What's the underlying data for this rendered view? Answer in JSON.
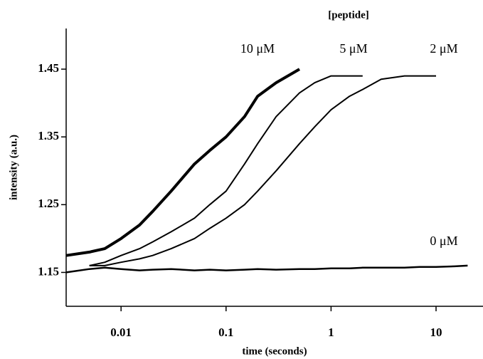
{
  "chart_data": {
    "type": "line",
    "legend_title": "[peptide]",
    "x_label": "time (seconds)",
    "y_label": "intensity (a.u.)",
    "x_scale": "log",
    "xlim": [
      0.003,
      28
    ],
    "ylim": [
      1.1,
      1.51
    ],
    "xticks": [
      0.01,
      0.1,
      1,
      10
    ],
    "yticks": [
      1.15,
      1.25,
      1.35,
      1.45
    ],
    "x": [
      0.003,
      0.005,
      0.007,
      0.01,
      0.015,
      0.02,
      0.03,
      0.05,
      0.07,
      0.1,
      0.15,
      0.2,
      0.3,
      0.5,
      0.7,
      1,
      1.5,
      2,
      3,
      5,
      7,
      10,
      15,
      20
    ],
    "series": [
      {
        "name": "10 μM",
        "color": "#000000",
        "values": [
          1.175,
          1.18,
          1.185,
          1.2,
          1.22,
          1.24,
          1.27,
          1.31,
          1.33,
          1.35,
          1.38,
          1.41,
          1.43,
          1.45,
          null,
          null,
          null,
          null,
          null,
          null,
          null,
          null,
          null,
          null
        ]
      },
      {
        "name": "5 μM",
        "color": "#000000",
        "values": [
          null,
          1.16,
          1.165,
          1.175,
          1.185,
          1.195,
          1.21,
          1.23,
          1.25,
          1.27,
          1.31,
          1.34,
          1.38,
          1.415,
          1.43,
          1.44,
          1.44,
          1.44,
          null,
          null,
          null,
          null,
          null,
          null
        ]
      },
      {
        "name": "2 μM",
        "color": "#000000",
        "values": [
          null,
          1.16,
          1.16,
          1.165,
          1.17,
          1.175,
          1.185,
          1.2,
          1.215,
          1.23,
          1.25,
          1.27,
          1.3,
          1.34,
          1.365,
          1.39,
          1.41,
          1.42,
          1.435,
          1.44,
          1.44,
          1.44,
          null,
          null
        ]
      },
      {
        "name": "0 μM",
        "color": "#000000",
        "values": [
          1.15,
          1.155,
          1.157,
          1.155,
          1.153,
          1.154,
          1.155,
          1.153,
          1.154,
          1.153,
          1.154,
          1.155,
          1.154,
          1.155,
          1.155,
          1.156,
          1.156,
          1.157,
          1.157,
          1.157,
          1.158,
          1.158,
          1.159,
          1.16
        ]
      }
    ]
  }
}
